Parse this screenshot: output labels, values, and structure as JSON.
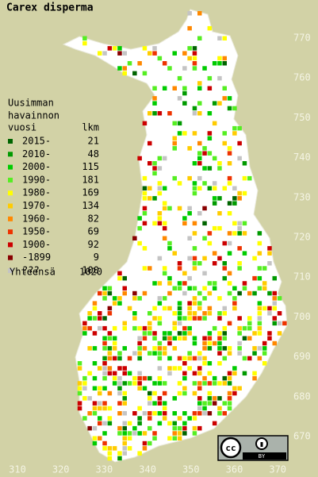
{
  "title": "Carex disperma",
  "legend": {
    "heading": [
      "Uusimman",
      "havainnon",
      "vuosi"
    ],
    "count_heading": "lkm",
    "rows": [
      {
        "label": "2015-",
        "count": "21",
        "color": "#006400"
      },
      {
        "label": "2010-",
        "count": "48",
        "color": "#009a00"
      },
      {
        "label": "2000-",
        "count": "115",
        "color": "#00cc00"
      },
      {
        "label": "1990-",
        "count": "181",
        "color": "#55ee22"
      },
      {
        "label": "1980-",
        "count": "169",
        "color": "#ffff00"
      },
      {
        "label": "1970-",
        "count": "134",
        "color": "#ffcc00"
      },
      {
        "label": "1960-",
        "count": "82",
        "color": "#ff8800"
      },
      {
        "label": "1950-",
        "count": "69",
        "color": "#ee3300"
      },
      {
        "label": "1900-",
        "count": "92",
        "color": "#cc0000"
      },
      {
        "label": "-1899",
        "count": "9",
        "color": "#880000"
      },
      {
        "label": "???",
        "count": "100",
        "color": "#c4c4c4"
      }
    ],
    "total_label": "Yhteensä",
    "total": "1020"
  },
  "x_axis_labels": [
    "310",
    "320",
    "330",
    "340",
    "350",
    "360",
    "370"
  ],
  "y_axis_labels": [
    "770",
    "760",
    "750",
    "740",
    "730",
    "720",
    "710",
    "700",
    "690",
    "680",
    "670"
  ],
  "license_badge": "BY"
}
